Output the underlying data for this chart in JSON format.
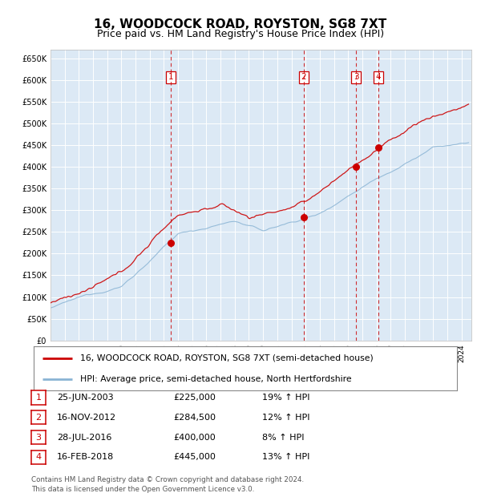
{
  "title": "16, WOODCOCK ROAD, ROYSTON, SG8 7XT",
  "subtitle": "Price paid vs. HM Land Registry's House Price Index (HPI)",
  "property_label": "16, WOODCOCK ROAD, ROYSTON, SG8 7XT (semi-detached house)",
  "hpi_label": "HPI: Average price, semi-detached house, North Hertfordshire",
  "footnote": "Contains HM Land Registry data © Crown copyright and database right 2024.\nThis data is licensed under the Open Government Licence v3.0.",
  "sale_events": [
    {
      "id": 1,
      "date": "25-JUN-2003",
      "price": 225000,
      "pct": "19%",
      "dir": "↑"
    },
    {
      "id": 2,
      "date": "16-NOV-2012",
      "price": 284500,
      "pct": "12%",
      "dir": "↑"
    },
    {
      "id": 3,
      "date": "28-JUL-2016",
      "price": 400000,
      "pct": "8%",
      "dir": "↑"
    },
    {
      "id": 4,
      "date": "16-FEB-2018",
      "price": 445000,
      "pct": "13%",
      "dir": "↑"
    }
  ],
  "sale_dates_decimal": [
    2003.48,
    2012.88,
    2016.57,
    2018.12
  ],
  "sale_prices": [
    225000,
    284500,
    400000,
    445000
  ],
  "vline_dates": [
    2003.48,
    2012.88,
    2016.57,
    2018.12
  ],
  "ylim_min": 0,
  "ylim_max": 670000,
  "ytick_step": 50000,
  "background_color": "#dce9f5",
  "red_color": "#cc0000",
  "blue_color": "#8ab4d4",
  "grid_color": "#ffffff",
  "title_fontsize": 11,
  "subtitle_fontsize": 9
}
